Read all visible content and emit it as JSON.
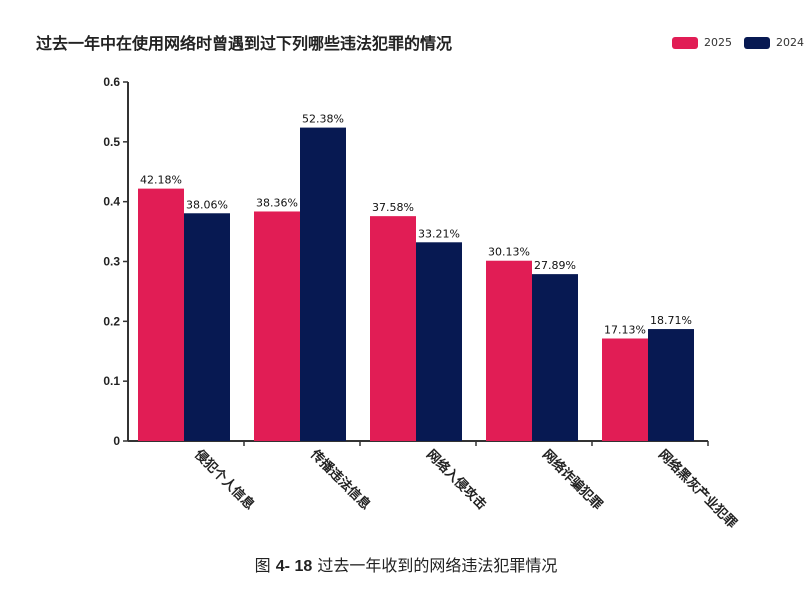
{
  "chart_data": {
    "type": "bar",
    "title": "过去一年中在使用网络时曾遇到过下列哪些违法犯罪的情况",
    "categories": [
      "侵犯个人信息",
      "传播违法信息",
      "网络入侵攻击",
      "网络诈骗犯罪",
      "网络黑灰产业犯罪"
    ],
    "series": [
      {
        "name": "2025",
        "color": "#e11d55",
        "values": [
          0.4218,
          0.3836,
          0.3758,
          0.3013,
          0.1713
        ],
        "labels": [
          "42.18%",
          "38.36%",
          "37.58%",
          "30.13%",
          "17.13%"
        ]
      },
      {
        "name": "2024",
        "color": "#071952",
        "values": [
          0.3806,
          0.5238,
          0.3321,
          0.2789,
          0.1871
        ],
        "labels": [
          "38.06%",
          "52.38%",
          "33.21%",
          "27.89%",
          "18.71%"
        ]
      }
    ],
    "yticks": [
      "0",
      "0.1",
      "0.2",
      "0.3",
      "0.4",
      "0.5",
      "0.6"
    ],
    "ylim": [
      0,
      0.6
    ],
    "grid": false,
    "legend_position": "top-right"
  },
  "caption": {
    "prefix": "图",
    "number": "4- 18",
    "text": "过去一年收到的网络违法犯罪情况"
  }
}
